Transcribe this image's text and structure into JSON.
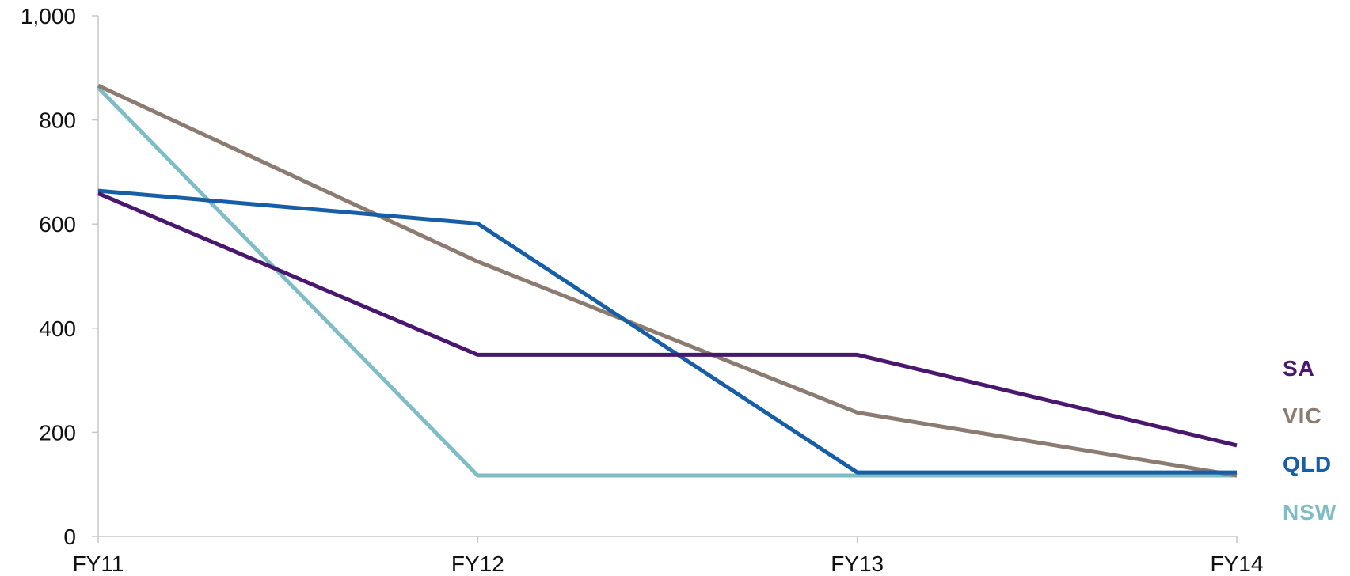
{
  "chart_data": {
    "type": "line",
    "title": "",
    "xlabel": "",
    "ylabel": "",
    "categories": [
      "FY11",
      "FY12",
      "FY13",
      "FY14"
    ],
    "ylim": [
      0,
      1000
    ],
    "yticks": [
      0,
      200,
      400,
      600,
      800,
      1000
    ],
    "ytick_labels": [
      "0",
      "200",
      "400",
      "600",
      "800",
      "1,000"
    ],
    "grid": false,
    "legend_placement": "right (direct labels at line ends)",
    "series": [
      {
        "name": "NSW",
        "color": "#7fbdc6",
        "values": [
          862,
          117,
          117,
          117
        ]
      },
      {
        "name": "VIC",
        "color": "#8c7b70",
        "values": [
          866,
          528,
          238,
          117
        ]
      },
      {
        "name": "QLD",
        "color": "#165fa6",
        "values": [
          664,
          601,
          123,
          123
        ]
      },
      {
        "name": "SA",
        "color": "#4a176f",
        "values": [
          659,
          349,
          349,
          175
        ]
      }
    ]
  }
}
